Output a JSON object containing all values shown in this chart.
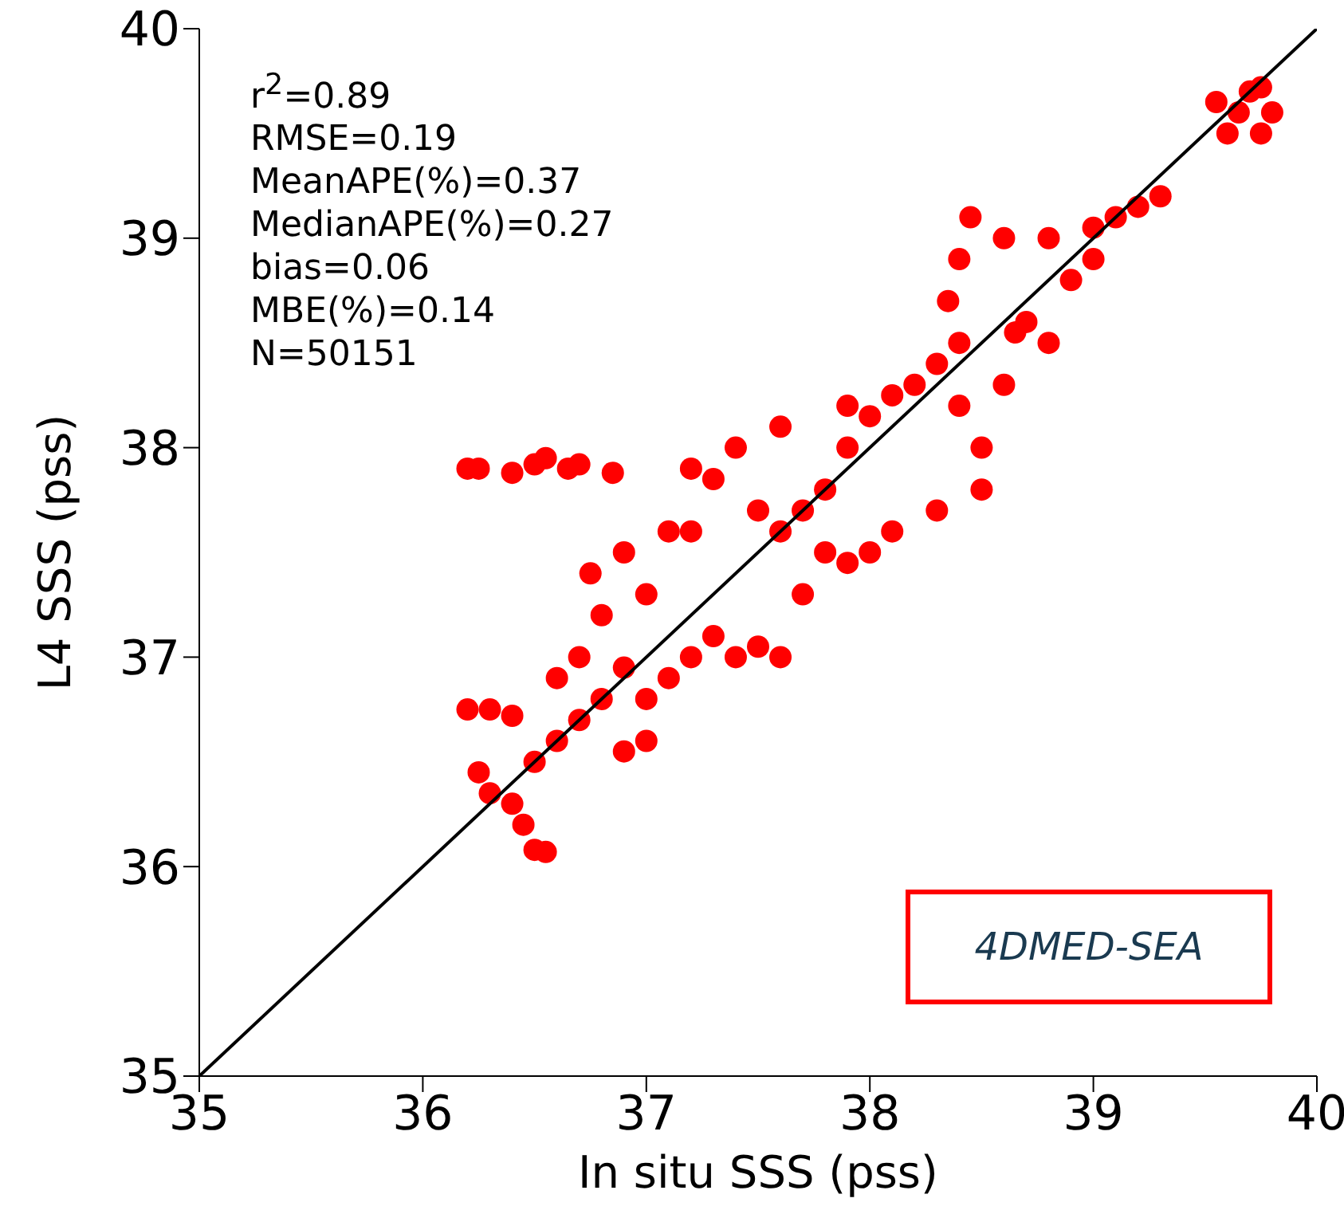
{
  "chart_data": {
    "type": "scatter",
    "xlabel": "In situ SSS (pss)",
    "ylabel": "L4 SSS (pss)",
    "xlim": [
      35,
      40
    ],
    "ylim": [
      35,
      40
    ],
    "xticks": [
      35,
      36,
      37,
      38,
      39,
      40
    ],
    "yticks": [
      35,
      36,
      37,
      38,
      39,
      40
    ],
    "marker": "circle",
    "annotations": [
      "r$^{2}$=0.89",
      "RMSE=0.19",
      "MeanAPE(%)=0.37",
      "MedianAPE(%)=0.27",
      "bias=0.06",
      "MBE(%)=0.14",
      "N=50151",
      "4DMED-SEA"
    ],
    "series": [
      {
        "color": "#ff0000",
        "x": [
          36.2,
          36.3,
          36.4,
          36.25,
          36.3,
          36.4,
          36.45,
          36.5,
          36.55,
          36.5,
          36.6,
          36.7,
          36.6,
          36.7,
          36.8,
          36.9,
          37.0,
          37.1,
          37.2,
          37.3,
          37.4,
          37.5,
          37.6,
          37.0,
          36.9,
          36.8,
          36.75,
          36.9,
          37.0,
          37.1,
          37.2,
          37.3,
          37.2,
          37.4,
          37.5,
          37.6,
          37.7,
          37.8,
          37.9,
          38.0,
          37.6,
          37.9,
          38.1,
          38.2,
          38.3,
          38.4,
          38.5,
          38.5,
          38.3,
          38.1,
          38.0,
          37.8,
          37.7,
          37.9,
          38.4,
          38.35,
          38.4,
          38.45,
          38.6,
          38.8,
          38.9,
          39.0,
          39.1,
          39.2,
          39.3,
          39.0,
          38.7,
          38.8,
          38.6,
          38.65,
          39.6,
          39.65,
          39.7,
          39.75,
          39.8,
          39.75,
          39.55,
          36.2,
          36.25,
          36.4,
          36.5,
          36.55,
          36.65,
          36.7,
          36.85
        ],
        "values": [
          36.75,
          36.75,
          36.72,
          36.45,
          36.35,
          36.3,
          36.2,
          36.08,
          36.07,
          36.5,
          36.6,
          36.7,
          36.9,
          37.0,
          36.8,
          36.95,
          36.8,
          36.9,
          37.0,
          37.1,
          37.0,
          37.05,
          37.0,
          36.6,
          36.55,
          37.2,
          37.4,
          37.5,
          37.3,
          37.6,
          37.6,
          37.85,
          37.9,
          38.0,
          37.7,
          37.6,
          37.7,
          37.8,
          38.0,
          38.15,
          38.1,
          38.2,
          38.25,
          38.3,
          38.4,
          38.2,
          38.0,
          37.8,
          37.7,
          37.6,
          37.5,
          37.5,
          37.3,
          37.45,
          38.5,
          38.7,
          38.9,
          39.1,
          39.0,
          39.0,
          38.8,
          38.9,
          39.1,
          39.15,
          39.2,
          39.05,
          38.6,
          38.5,
          38.3,
          38.55,
          39.5,
          39.6,
          39.7,
          39.72,
          39.6,
          39.5,
          39.65,
          37.9,
          37.9,
          37.88,
          37.92,
          37.95,
          37.9,
          37.92,
          37.88
        ]
      },
      {
        "type": "line",
        "color": "#000000",
        "marker": "none",
        "x": [
          35,
          40
        ],
        "values": [
          35,
          40
        ]
      }
    ]
  }
}
